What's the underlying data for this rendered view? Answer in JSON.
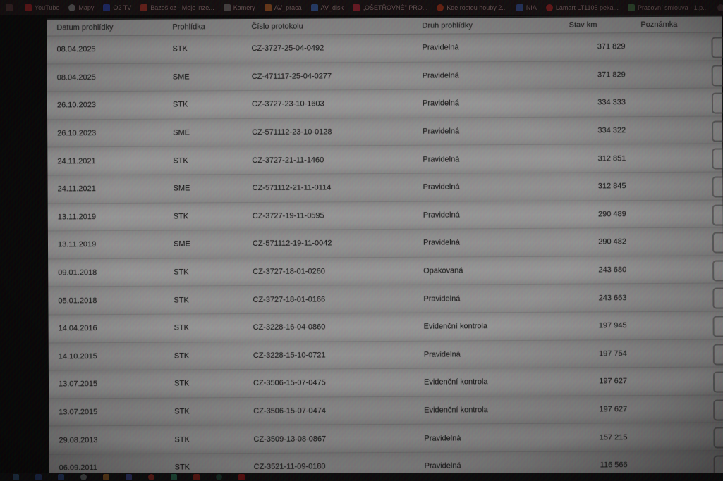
{
  "bookmarks_bar": {
    "items": [
      {
        "label": "",
        "icon": "bookmark-favicon",
        "color": "#5a3838",
        "shape": "square"
      },
      {
        "label": "YouTube",
        "icon": "youtube-icon",
        "color": "#c02020",
        "shape": "square"
      },
      {
        "label": "Mapy",
        "icon": "mapy-icon",
        "color": "#8a8a8a",
        "shape": "round"
      },
      {
        "label": "O2 TV",
        "icon": "o2tv-icon",
        "color": "#2244bb",
        "shape": "square"
      },
      {
        "label": "Bazoš.cz - Moje inze...",
        "icon": "bazos-icon",
        "color": "#bb3322",
        "shape": "square"
      },
      {
        "label": "Kamery",
        "icon": "folder-icon",
        "color": "#777070",
        "shape": "square"
      },
      {
        "label": "AV_praca",
        "icon": "folder-icon",
        "color": "#bb6020",
        "shape": "square"
      },
      {
        "label": "AV_disk",
        "icon": "drive-icon",
        "color": "#3366bb",
        "shape": "square"
      },
      {
        "label": "„OŠETŘOVNÉ\" PRO...",
        "icon": "document-icon",
        "color": "#bb2233",
        "shape": "square"
      },
      {
        "label": "Kde rostou houby 2...",
        "icon": "youtube-icon",
        "color": "#bb3311",
        "shape": "round"
      },
      {
        "label": "NIA",
        "icon": "nia-icon",
        "color": "#3355aa",
        "shape": "square"
      },
      {
        "label": "Lamart LT1105 peká...",
        "icon": "shop-icon",
        "color": "#bb2020",
        "shape": "round"
      },
      {
        "label": "Pracovní smlouva - 1.p...",
        "icon": "document-icon",
        "color": "#447744",
        "shape": "square"
      },
      {
        "label": "",
        "icon": "globe-icon",
        "color": "#554242",
        "shape": "round"
      }
    ]
  },
  "table": {
    "headers": [
      "Datum prohlídky",
      "Prohlídka",
      "Číslo protokolu",
      "Druh prohlídky",
      "Stav km",
      "Poznámka"
    ],
    "rows": [
      {
        "date": "08.04.2025",
        "inspection": "STK",
        "protocol": "CZ-3727-25-04-0492",
        "kind": "Pravidelná",
        "km": "371 829",
        "note": ""
      },
      {
        "date": "08.04.2025",
        "inspection": "SME",
        "protocol": "CZ-471117-25-04-0277",
        "kind": "Pravidelná",
        "km": "371 829",
        "note": ""
      },
      {
        "date": "26.10.2023",
        "inspection": "STK",
        "protocol": "CZ-3727-23-10-1603",
        "kind": "Pravidelná",
        "km": "334 333",
        "note": ""
      },
      {
        "date": "26.10.2023",
        "inspection": "SME",
        "protocol": "CZ-571112-23-10-0128",
        "kind": "Pravidelná",
        "km": "334 322",
        "note": ""
      },
      {
        "date": "24.11.2021",
        "inspection": "STK",
        "protocol": "CZ-3727-21-11-1460",
        "kind": "Pravidelná",
        "km": "312 851",
        "note": ""
      },
      {
        "date": "24.11.2021",
        "inspection": "SME",
        "protocol": "CZ-571112-21-11-0114",
        "kind": "Pravidelná",
        "km": "312 845",
        "note": ""
      },
      {
        "date": "13.11.2019",
        "inspection": "STK",
        "protocol": "CZ-3727-19-11-0595",
        "kind": "Pravidelná",
        "km": "290 489",
        "note": ""
      },
      {
        "date": "13.11.2019",
        "inspection": "SME",
        "protocol": "CZ-571112-19-11-0042",
        "kind": "Pravidelná",
        "km": "290 482",
        "note": ""
      },
      {
        "date": "09.01.2018",
        "inspection": "STK",
        "protocol": "CZ-3727-18-01-0260",
        "kind": "Opakovaná",
        "km": "243 680",
        "note": ""
      },
      {
        "date": "05.01.2018",
        "inspection": "STK",
        "protocol": "CZ-3727-18-01-0166",
        "kind": "Pravidelná",
        "km": "243 663",
        "note": ""
      },
      {
        "date": "14.04.2016",
        "inspection": "STK",
        "protocol": "CZ-3228-16-04-0860",
        "kind": "Evidenční kontrola",
        "km": "197 945",
        "note": ""
      },
      {
        "date": "14.10.2015",
        "inspection": "STK",
        "protocol": "CZ-3228-15-10-0721",
        "kind": "Pravidelná",
        "km": "197 754",
        "note": ""
      },
      {
        "date": "13.07.2015",
        "inspection": "STK",
        "protocol": "CZ-3506-15-07-0475",
        "kind": "Evidenční kontrola",
        "km": "197 627",
        "note": ""
      },
      {
        "date": "13.07.2015",
        "inspection": "STK",
        "protocol": "CZ-3506-15-07-0474",
        "kind": "Evidenční kontrola",
        "km": "197 627",
        "note": ""
      },
      {
        "date": "29.08.2013",
        "inspection": "STK",
        "protocol": "CZ-3509-13-08-0867",
        "kind": "Pravidelná",
        "km": "157 215",
        "note": ""
      },
      {
        "date": "06.09.2011",
        "inspection": "STK",
        "protocol": "CZ-3521-11-09-0180",
        "kind": "Pravidelná",
        "km": "116 566",
        "note": ""
      }
    ]
  },
  "taskbar": {
    "icons": [
      {
        "name": "start-icon",
        "color": "#3a6ea5",
        "shape": "square"
      },
      {
        "name": "taskbar-app-icon",
        "color": "#2b4fa0",
        "shape": "square"
      },
      {
        "name": "taskbar-app-icon",
        "color": "#3355a8",
        "shape": "square"
      },
      {
        "name": "browser-icon",
        "color": "#8a8f94",
        "shape": "round"
      },
      {
        "name": "explorer-icon",
        "color": "#c07722",
        "shape": "square"
      },
      {
        "name": "taskbar-app-icon",
        "color": "#4450b0",
        "shape": "square"
      },
      {
        "name": "browser-icon",
        "color": "#b83020",
        "shape": "round"
      },
      {
        "name": "taskbar-app-icon",
        "color": "#2f8a66",
        "shape": "square"
      },
      {
        "name": "taskbar-app-icon",
        "color": "#b32015",
        "shape": "square"
      },
      {
        "name": "taskbar-app-icon",
        "color": "#1f4a38",
        "shape": "round"
      },
      {
        "name": "taskbar-app-icon",
        "color": "#b31010",
        "shape": "square"
      }
    ]
  }
}
